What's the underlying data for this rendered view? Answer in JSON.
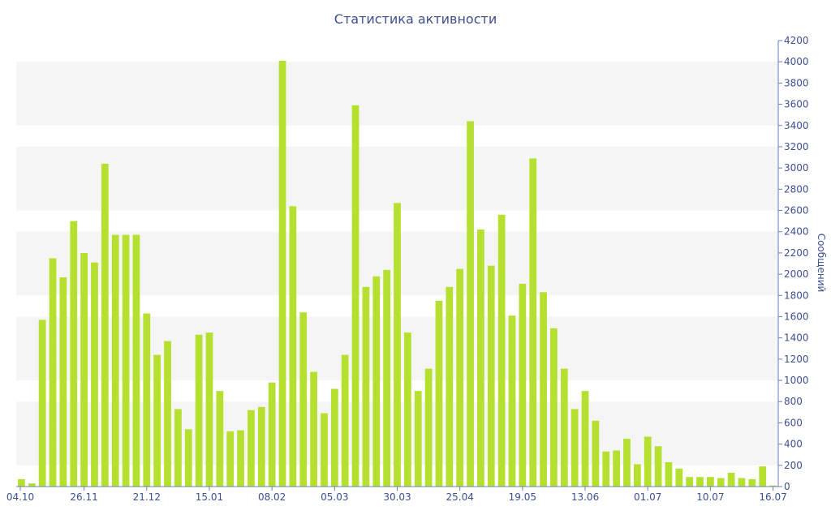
{
  "chart_data": {
    "type": "bar",
    "title": "Статистика активности",
    "ylabel": "Сообщений",
    "xlabel": "",
    "ylim": [
      0,
      4200
    ],
    "y_ticks": [
      0,
      200,
      400,
      600,
      800,
      1000,
      1200,
      1400,
      1600,
      1800,
      2000,
      2200,
      2400,
      2600,
      2800,
      3000,
      3200,
      3400,
      3600,
      3800,
      4000,
      4200
    ],
    "x_tick_labels": [
      {
        "label": "04.10",
        "index": 0
      },
      {
        "label": "26.11",
        "index": 6
      },
      {
        "label": "21.12",
        "index": 12
      },
      {
        "label": "15.01",
        "index": 18
      },
      {
        "label": "08.02",
        "index": 24
      },
      {
        "label": "05.03",
        "index": 30
      },
      {
        "label": "30.03",
        "index": 36
      },
      {
        "label": "25.04",
        "index": 42
      },
      {
        "label": "19.05",
        "index": 48
      },
      {
        "label": "13.06",
        "index": 54
      },
      {
        "label": "01.07",
        "index": 60
      },
      {
        "label": "10.07",
        "index": 66
      },
      {
        "label": "16.07",
        "index": 72
      }
    ],
    "values": [
      70,
      30,
      1570,
      2150,
      1970,
      2500,
      2200,
      2110,
      3040,
      2370,
      2370,
      2370,
      1630,
      1240,
      1370,
      730,
      540,
      1430,
      1450,
      900,
      520,
      530,
      720,
      750,
      980,
      4010,
      2640,
      1640,
      1080,
      690,
      920,
      1240,
      3590,
      1880,
      1980,
      2040,
      2670,
      1450,
      900,
      1110,
      1750,
      1880,
      2050,
      3440,
      2420,
      2080,
      2560,
      1610,
      1910,
      3090,
      1830,
      1490,
      1110,
      730,
      900,
      620,
      330,
      340,
      450,
      210,
      470,
      380,
      230,
      170,
      90,
      90,
      90,
      80,
      130,
      80,
      70,
      190,
      10
    ],
    "series": [
      {
        "values_ref": "values",
        "color": "#b5e02f"
      }
    ],
    "colors": {
      "bar": "#b5e02f",
      "text": "#3d4f8f",
      "band": "#f5f5f5",
      "axis": "#6b7db8"
    },
    "grid": "alternating horizontal bands",
    "y_axis_side": "right"
  }
}
